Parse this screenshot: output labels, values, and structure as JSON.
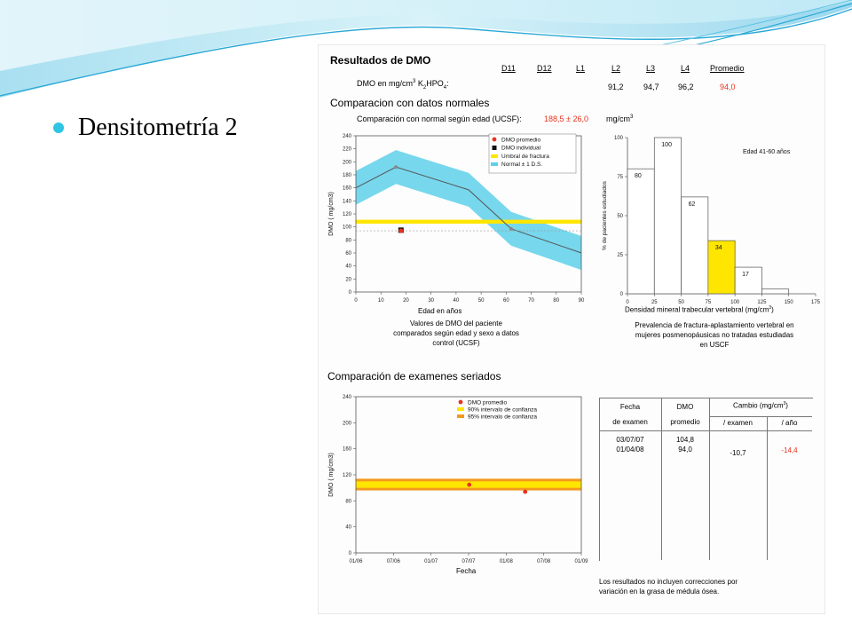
{
  "slide": {
    "bullet": "Densitometría 2",
    "colors": {
      "accent": "#2ec4e2",
      "swoosh_light": "#bfeaf5",
      "swoosh_dark": "#2ba9d6"
    }
  },
  "report": {
    "title": "Resultados de DMO",
    "columns": [
      "D11",
      "D12",
      "L1",
      "L2",
      "L3",
      "L4",
      "Promedio"
    ],
    "dmo_label_pre": "DMO en mg/cm",
    "dmo_label_sup": "3",
    "dmo_label_mid": " K",
    "dmo_label_sub1": "2",
    "dmo_label_post": "HPO",
    "dmo_label_sub2": "4",
    "dmo_label_end": ":",
    "values": [
      "",
      "",
      "",
      "91,2",
      "94,7",
      "96,2",
      "94,0"
    ],
    "comparison_title": "Comparacion con datos normales",
    "comparison_subtitle": "Comparación con normal según edad (UCSF):",
    "comparison_value": "188,5 ± 26,0",
    "comparison_unit_pre": "mg/cm",
    "comparison_unit_sup": "3",
    "colors": {
      "red": "#e8321f",
      "yellow": "#ffe600",
      "cyan": "#5fd0ea",
      "orange": "#f39a1e"
    }
  },
  "chart_age": {
    "legend": [
      "DMO promedio",
      "DMO individual",
      "Umbral de fractura",
      "Normal ± 1 D.S."
    ],
    "ylabel_pre": "DMO ( mg/cm",
    "ylabel_sup": "3",
    "ylabel_post": ")",
    "xlabel": "Edad en años",
    "yticks": [
      "0",
      "20",
      "40",
      "60",
      "80",
      "100",
      "120",
      "140",
      "160",
      "180",
      "200",
      "220",
      "240"
    ],
    "xticks": [
      "0",
      "10",
      "20",
      "30",
      "40",
      "50",
      "60",
      "70",
      "80",
      "90"
    ],
    "caption": [
      "Valores de DMO del paciente",
      "comparados según edad y sexo a datos",
      "control (UCSF)"
    ]
  },
  "chart_prev": {
    "label": "Edad 41-60 años",
    "ylabel": "% de pacientes estudiados",
    "xlabel_pre": "Densidad mineral trabecular vertebral (mg/cm",
    "xlabel_sup": "3",
    "xlabel_post": ")",
    "yticks": [
      "0",
      "25",
      "50",
      "75",
      "100"
    ],
    "xticks": [
      "0",
      "25",
      "50",
      "75",
      "100",
      "125",
      "150",
      "175"
    ],
    "bar_labels": [
      "80",
      "100",
      "62",
      "34",
      "17"
    ],
    "caption": [
      "Prevalencia de fractura-aplastamiento vertebral en",
      "mujeres posmenopáusicas no tratadas estudiadas",
      "en USCF"
    ]
  },
  "serial": {
    "title": "Comparación de examenes seriados",
    "legend": [
      "DMO promedio",
      "90% intervalo de confianza",
      "95% intervalo de confianza"
    ],
    "ylabel_pre": "DMO ( mg/cm",
    "ylabel_sup": "3",
    "ylabel_post": ")",
    "xlabel": "Fecha",
    "yticks": [
      "0",
      "40",
      "80",
      "120",
      "160",
      "200",
      "240"
    ],
    "xticks": [
      "01/06",
      "07/06",
      "01/07",
      "07/07",
      "01/08",
      "07/08",
      "01/09"
    ],
    "table": {
      "col1_h1": "Fecha",
      "col1_h2": "de examen",
      "col2_h1": "DMO",
      "col2_h2": "promedio",
      "col3_h1_pre": "Cambio (mg/cm",
      "col3_h1_sup": "3",
      "col3_h1_post": ")",
      "col3_h2a": "/ examen",
      "col3_h2b": "/ año",
      "dates": [
        "03/07/07",
        "01/04/08"
      ],
      "dmo": [
        "104,8",
        "94,0"
      ],
      "per_exam": "-10,7",
      "per_year": "-14,4"
    },
    "note": [
      "Los resultados no incluyen correcciones por",
      "variación en la grasa de médula ósea."
    ]
  },
  "chart_data": [
    {
      "type": "line",
      "xlabel": "Edad en años",
      "ylabel": "DMO ( mg/cm3)",
      "xlim": [
        0,
        90
      ],
      "ylim": [
        0,
        240
      ],
      "series": [
        {
          "name": "Normal ± 1 D.S.",
          "x": [
            0,
            16,
            45,
            62,
            90
          ],
          "y": [
            160,
            192,
            157,
            97,
            60
          ],
          "sd": 26
        },
        {
          "name": "Umbral de fractura",
          "x": [
            0,
            90
          ],
          "y": [
            108,
            108
          ]
        },
        {
          "name": "DMO individual",
          "x": [
            18
          ],
          "y": [
            95
          ]
        },
        {
          "name": "DMO promedio",
          "x": [
            18
          ],
          "y": [
            94
          ]
        }
      ]
    },
    {
      "type": "bar",
      "title": "Edad 41-60 años",
      "xlabel": "Densidad mineral trabecular vertebral (mg/cm3)",
      "ylabel": "% de pacientes estudiados",
      "bins": [
        [
          0,
          25
        ],
        [
          25,
          50
        ],
        [
          50,
          75
        ],
        [
          75,
          100
        ],
        [
          100,
          125
        ],
        [
          125,
          150
        ]
      ],
      "values": [
        80,
        100,
        62,
        34,
        17,
        3
      ],
      "ylim": [
        0,
        100
      ],
      "xlim": [
        0,
        175
      ]
    },
    {
      "type": "scatter",
      "xlabel": "Fecha",
      "ylabel": "DMO ( mg/cm3)",
      "x": [
        "03/07/07",
        "01/04/08"
      ],
      "y": [
        104.8,
        94.0
      ],
      "ylim": [
        0,
        240
      ],
      "bands": [
        {
          "name": "95% intervalo de confianza",
          "range": [
            96,
            114
          ]
        },
        {
          "name": "90% intervalo de confianza",
          "range": [
            100,
            110
          ]
        }
      ]
    }
  ]
}
